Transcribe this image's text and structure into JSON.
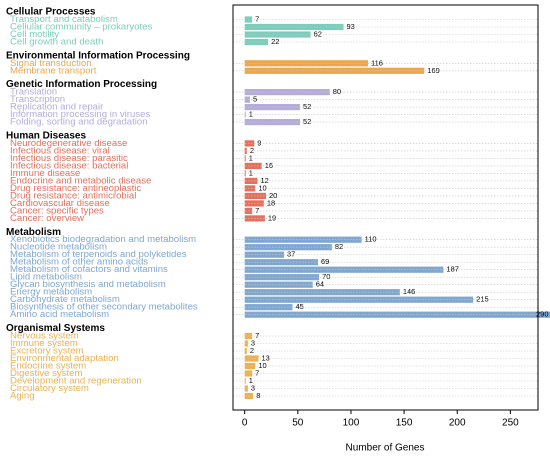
{
  "chart_data": {
    "type": "bar",
    "orientation": "horizontal",
    "xlabel": "Number of Genes",
    "xlim": [
      -11,
      276
    ],
    "xticks": [
      0,
      50,
      100,
      150,
      200,
      250
    ],
    "grid": true,
    "groups": [
      {
        "name": "Cellular Processes",
        "color": "#7dcdbc",
        "categories": [
          "Transport and catabolism",
          "Cellular community – prokaryotes",
          "Cell motility",
          "Cell growth and death"
        ],
        "values": [
          7,
          93,
          62,
          22
        ]
      },
      {
        "name": "Environmental Information Processing",
        "color": "#eaa74e",
        "categories": [
          "Signal transduction",
          "Membrane transport"
        ],
        "values": [
          116,
          169
        ]
      },
      {
        "name": "Genetic Information Processing",
        "color": "#b5acd9",
        "categories": [
          "Translation",
          "Transcription",
          "Replication and repair",
          "Information processing in viruses",
          "Folding, sorting and degradation"
        ],
        "values": [
          80,
          5,
          52,
          1,
          52
        ]
      },
      {
        "name": "Human Diseases",
        "color": "#e4705d",
        "categories": [
          "Neurodegenerative disease",
          "Infectious disease: viral",
          "Infectious disease: parasitic",
          "Infectious disease: bacterial",
          "Immune disease",
          "Endocrine and metabolic disease",
          "Drug resistance: antineoplastic",
          "Drug resistance: antimicrobial",
          "Cardiovascular disease",
          "Cancer: specific types",
          "Cancer: overview"
        ],
        "values": [
          9,
          2,
          1,
          16,
          1,
          12,
          10,
          20,
          18,
          7,
          19
        ]
      },
      {
        "name": "Metabolism",
        "color": "#80a7d0",
        "categories": [
          "Xenobiotics biodegradation and metabolism",
          "Nucleotide metabolism",
          "Metabolism of terpenoids and polyketides",
          "Metabolism of other amino acids",
          "Metabolism of cofactors and vitamins",
          "Lipid metabolism",
          "Glycan biosynthesis and metabolism",
          "Energy metabolism",
          "Carbohydrate metabolism",
          "Biosynthesis of other secondary metabolites",
          "Amino acid metabolism"
        ],
        "values": [
          110,
          82,
          37,
          69,
          187,
          70,
          64,
          146,
          215,
          45,
          290
        ]
      },
      {
        "name": "Organismal Systems",
        "color": "#ebb24f",
        "categories": [
          "Nervous system",
          "Immune system",
          "Excretory system",
          "Environmental adaptation",
          "Endocrine system",
          "Digestive system",
          "Development and regeneration",
          "Circulatory system",
          "Aging"
        ],
        "values": [
          7,
          3,
          2,
          13,
          10,
          7,
          1,
          3,
          8
        ]
      }
    ]
  }
}
